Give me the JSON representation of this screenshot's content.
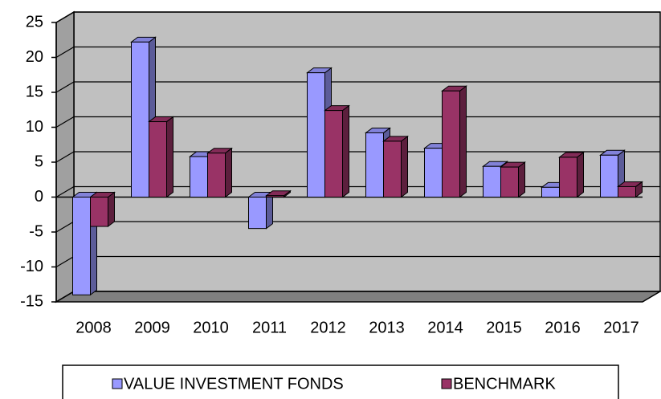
{
  "chart_data": {
    "type": "bar3d",
    "categories": [
      "2008",
      "2009",
      "2010",
      "2011",
      "2012",
      "2013",
      "2014",
      "2015",
      "2016",
      "2017"
    ],
    "series": [
      {
        "name": "VALUE INVESTMENT FONDS",
        "color": "#9999ff",
        "values": [
          -14,
          22.2,
          5.8,
          -4.5,
          17.8,
          9.2,
          7,
          4.4,
          1.4,
          6
        ]
      },
      {
        "name": "BENCHMARK",
        "color": "#993366",
        "values": [
          -4.2,
          10.8,
          6.3,
          0.2,
          12.4,
          8,
          15.2,
          4.3,
          5.7,
          1.5
        ]
      }
    ],
    "ylim": [
      -15,
      25
    ],
    "yticks": [
      -15,
      -10,
      -5,
      0,
      5,
      10,
      15,
      20,
      25
    ],
    "grid": true,
    "legend": "bottom"
  }
}
